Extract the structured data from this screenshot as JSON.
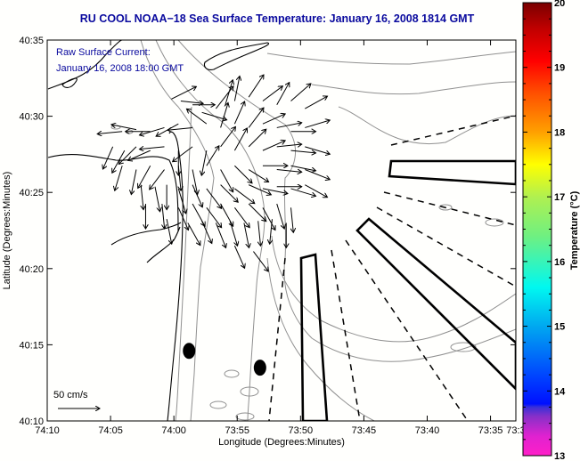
{
  "title": "RU COOL  NOAA−18  Sea Surface Temperature:  January 16, 2008 1814 GMT",
  "inset": {
    "line1": "Raw Surface Current:",
    "line2": "January 16, 2008 18:00 GMT"
  },
  "scale_arrow": {
    "label": "50 cm/s",
    "speed_cm_s": 50
  },
  "colors": {
    "title": "#0a0a9e",
    "background": "#fffffd",
    "coastline": "#000000",
    "isobath": "#909090"
  },
  "chart_data": {
    "type": "map",
    "title": "RU COOL  NOAA−18  Sea Surface Temperature:  January 16, 2008 1814 GMT",
    "xlabel": "Longitude (Degrees:Minutes)",
    "ylabel": "Latitude (Degrees:Minutes)",
    "xlim_minutes_west": [
      250,
      213
    ],
    "ylim_minutes_north": [
      2410,
      2435
    ],
    "x_ticks": [
      "74:10",
      "74:05",
      "74:00",
      "73:55",
      "73:50",
      "73:45",
      "73:40",
      "73:35",
      "73:3"
    ],
    "x_tick_values": [
      250,
      245,
      240,
      235,
      230,
      225,
      220,
      215,
      213
    ],
    "y_ticks": [
      "40:35",
      "40:30",
      "40:25",
      "40:20",
      "40:15",
      "40:10"
    ],
    "y_tick_values": [
      2435,
      2430,
      2425,
      2420,
      2415,
      2410
    ],
    "colorbar": {
      "label": "Temperature (°C)",
      "min": 13,
      "max": 20,
      "ticks": [
        "20",
        "19",
        "18",
        "17",
        "16",
        "15",
        "14",
        "13"
      ],
      "tick_values": [
        20,
        19,
        18,
        17,
        16,
        15,
        14,
        13
      ],
      "stops": [
        {
          "t": 13.0,
          "color": "#ff1fc8"
        },
        {
          "t": 13.3,
          "color": "#e022d0"
        },
        {
          "t": 13.6,
          "color": "#8a30c8"
        },
        {
          "t": 13.75,
          "color": "#3a30d8"
        },
        {
          "t": 13.8,
          "color": "#0010ff"
        },
        {
          "t": 14.2,
          "color": "#0040ff"
        },
        {
          "t": 15.0,
          "color": "#00a8f0"
        },
        {
          "t": 15.6,
          "color": "#00f8f0"
        },
        {
          "t": 16.4,
          "color": "#70f080"
        },
        {
          "t": 17.0,
          "color": "#b0f050"
        },
        {
          "t": 17.5,
          "color": "#ffff00"
        },
        {
          "t": 18.0,
          "color": "#ffa000"
        },
        {
          "t": 18.6,
          "color": "#ff5000"
        },
        {
          "t": 19.1,
          "color": "#ff0000"
        },
        {
          "t": 19.6,
          "color": "#c00000"
        },
        {
          "t": 20.0,
          "color": "#7a0000"
        }
      ]
    },
    "buoys": [
      {
        "lon_min_w": 238.8,
        "lat_min_n": 2414.6
      },
      {
        "lon_min_w": 233.2,
        "lat_min_n": 2413.5
      }
    ],
    "ship_lanes": {
      "solid_boxes": 3,
      "dashed_lines": 8
    },
    "surface_current_vectors": [
      {
        "x": 0.265,
        "y": 0.155,
        "u": 1.0,
        "v": -0.5
      },
      {
        "x": 0.285,
        "y": 0.16,
        "u": 0.9,
        "v": 0.1
      },
      {
        "x": 0.31,
        "y": 0.17,
        "u": 0.9,
        "v": 0.0
      },
      {
        "x": 0.33,
        "y": 0.19,
        "u": 1.0,
        "v": 0.3
      },
      {
        "x": 0.36,
        "y": 0.18,
        "u": 0.7,
        "v": -0.9
      },
      {
        "x": 0.38,
        "y": 0.17,
        "u": 0.3,
        "v": -1.0
      },
      {
        "x": 0.4,
        "y": 0.16,
        "u": 0.2,
        "v": -1.0
      },
      {
        "x": 0.43,
        "y": 0.15,
        "u": 0.6,
        "v": -0.9
      },
      {
        "x": 0.46,
        "y": 0.16,
        "u": 0.8,
        "v": -0.6
      },
      {
        "x": 0.49,
        "y": 0.17,
        "u": 0.5,
        "v": -0.9
      },
      {
        "x": 0.52,
        "y": 0.16,
        "u": 0.8,
        "v": -0.7
      },
      {
        "x": 0.55,
        "y": 0.18,
        "u": 0.9,
        "v": -0.5
      },
      {
        "x": 0.16,
        "y": 0.24,
        "u": -1.0,
        "v": 0.1
      },
      {
        "x": 0.19,
        "y": 0.235,
        "u": -1.0,
        "v": -0.2
      },
      {
        "x": 0.22,
        "y": 0.24,
        "u": -1.0,
        "v": 0.0
      },
      {
        "x": 0.25,
        "y": 0.23,
        "u": -1.0,
        "v": 0.3
      },
      {
        "x": 0.28,
        "y": 0.22,
        "u": -0.9,
        "v": 0.5
      },
      {
        "x": 0.31,
        "y": 0.23,
        "u": -1.0,
        "v": 0.1
      },
      {
        "x": 0.34,
        "y": 0.22,
        "u": -0.8,
        "v": -0.6
      },
      {
        "x": 0.37,
        "y": 0.23,
        "u": 0.3,
        "v": -1.0
      },
      {
        "x": 0.4,
        "y": 0.22,
        "u": 0.4,
        "v": -0.9
      },
      {
        "x": 0.43,
        "y": 0.23,
        "u": 0.6,
        "v": -0.8
      },
      {
        "x": 0.46,
        "y": 0.22,
        "u": 0.9,
        "v": -0.4
      },
      {
        "x": 0.49,
        "y": 0.23,
        "u": 1.0,
        "v": -0.2
      },
      {
        "x": 0.52,
        "y": 0.24,
        "u": 1.0,
        "v": 0.0
      },
      {
        "x": 0.55,
        "y": 0.23,
        "u": 1.0,
        "v": -0.3
      },
      {
        "x": 0.14,
        "y": 0.28,
        "u": -0.4,
        "v": 0.9
      },
      {
        "x": 0.165,
        "y": 0.29,
        "u": -0.5,
        "v": 0.9
      },
      {
        "x": 0.19,
        "y": 0.28,
        "u": -0.7,
        "v": 0.7
      },
      {
        "x": 0.22,
        "y": 0.29,
        "u": -0.9,
        "v": 0.4
      },
      {
        "x": 0.25,
        "y": 0.28,
        "u": -1.0,
        "v": 0.1
      },
      {
        "x": 0.28,
        "y": 0.29,
        "u": 0.0,
        "v": 1.0
      },
      {
        "x": 0.31,
        "y": 0.28,
        "u": -0.8,
        "v": 0.6
      },
      {
        "x": 0.34,
        "y": 0.29,
        "u": -0.2,
        "v": 1.0
      },
      {
        "x": 0.37,
        "y": 0.28,
        "u": 0.6,
        "v": -0.8
      },
      {
        "x": 0.4,
        "y": 0.29,
        "u": 0.5,
        "v": -0.9
      },
      {
        "x": 0.43,
        "y": 0.28,
        "u": 0.7,
        "v": -0.7
      },
      {
        "x": 0.46,
        "y": 0.29,
        "u": 0.9,
        "v": -0.4
      },
      {
        "x": 0.49,
        "y": 0.28,
        "u": 1.0,
        "v": -0.1
      },
      {
        "x": 0.52,
        "y": 0.29,
        "u": 1.0,
        "v": 0.1
      },
      {
        "x": 0.55,
        "y": 0.28,
        "u": 1.0,
        "v": 0.3
      },
      {
        "x": 0.16,
        "y": 0.33,
        "u": -0.3,
        "v": 1.0
      },
      {
        "x": 0.19,
        "y": 0.34,
        "u": -0.2,
        "v": 1.0
      },
      {
        "x": 0.22,
        "y": 0.33,
        "u": -0.5,
        "v": 0.9
      },
      {
        "x": 0.25,
        "y": 0.34,
        "u": -0.6,
        "v": 0.8
      },
      {
        "x": 0.28,
        "y": 0.33,
        "u": 0.1,
        "v": 1.0
      },
      {
        "x": 0.31,
        "y": 0.34,
        "u": 0.2,
        "v": 1.0
      },
      {
        "x": 0.34,
        "y": 0.33,
        "u": 0.5,
        "v": -0.8
      },
      {
        "x": 0.37,
        "y": 0.34,
        "u": 0.5,
        "v": 0.9
      },
      {
        "x": 0.4,
        "y": 0.33,
        "u": 0.7,
        "v": 0.7
      },
      {
        "x": 0.43,
        "y": 0.34,
        "u": 0.8,
        "v": 0.5
      },
      {
        "x": 0.46,
        "y": 0.33,
        "u": 1.0,
        "v": 0.0
      },
      {
        "x": 0.49,
        "y": 0.34,
        "u": 1.0,
        "v": 0.1
      },
      {
        "x": 0.52,
        "y": 0.33,
        "u": 1.0,
        "v": 0.2
      },
      {
        "x": 0.55,
        "y": 0.34,
        "u": 1.0,
        "v": 0.4
      },
      {
        "x": 0.2,
        "y": 0.38,
        "u": 0.1,
        "v": 1.0
      },
      {
        "x": 0.23,
        "y": 0.385,
        "u": 0.2,
        "v": 1.0
      },
      {
        "x": 0.255,
        "y": 0.38,
        "u": 0.0,
        "v": 1.0
      },
      {
        "x": 0.28,
        "y": 0.39,
        "u": 0.3,
        "v": 1.0
      },
      {
        "x": 0.31,
        "y": 0.38,
        "u": 0.4,
        "v": 0.9
      },
      {
        "x": 0.34,
        "y": 0.39,
        "u": 0.6,
        "v": 0.8
      },
      {
        "x": 0.37,
        "y": 0.38,
        "u": 0.7,
        "v": 0.7
      },
      {
        "x": 0.4,
        "y": 0.39,
        "u": 0.8,
        "v": 0.6
      },
      {
        "x": 0.43,
        "y": 0.38,
        "u": 0.9,
        "v": 0.4
      },
      {
        "x": 0.46,
        "y": 0.39,
        "u": 1.0,
        "v": 0.2
      },
      {
        "x": 0.49,
        "y": 0.385,
        "u": 1.0,
        "v": 0.0
      },
      {
        "x": 0.52,
        "y": 0.39,
        "u": 1.0,
        "v": 0.3
      },
      {
        "x": 0.55,
        "y": 0.38,
        "u": 0.9,
        "v": 0.5
      },
      {
        "x": 0.21,
        "y": 0.43,
        "u": 0.0,
        "v": 1.0
      },
      {
        "x": 0.245,
        "y": 0.43,
        "u": 0.1,
        "v": 1.0
      },
      {
        "x": 0.28,
        "y": 0.44,
        "u": 0.4,
        "v": 0.9
      },
      {
        "x": 0.31,
        "y": 0.43,
        "u": 0.5,
        "v": 0.9
      },
      {
        "x": 0.34,
        "y": 0.44,
        "u": 0.6,
        "v": 0.8
      },
      {
        "x": 0.37,
        "y": 0.43,
        "u": 0.5,
        "v": 0.9
      },
      {
        "x": 0.4,
        "y": 0.44,
        "u": 0.6,
        "v": 0.8
      },
      {
        "x": 0.43,
        "y": 0.43,
        "u": 0.7,
        "v": 0.7
      },
      {
        "x": 0.46,
        "y": 0.44,
        "u": 0.5,
        "v": 0.9
      },
      {
        "x": 0.49,
        "y": 0.43,
        "u": 0.3,
        "v": 1.0
      },
      {
        "x": 0.52,
        "y": 0.44,
        "u": 0.1,
        "v": 1.0
      },
      {
        "x": 0.255,
        "y": 0.47,
        "u": 0.2,
        "v": 1.0
      },
      {
        "x": 0.3,
        "y": 0.48,
        "u": 0.5,
        "v": 0.9
      },
      {
        "x": 0.33,
        "y": 0.475,
        "u": 0.4,
        "v": 0.9
      },
      {
        "x": 0.36,
        "y": 0.48,
        "u": 0.4,
        "v": 1.0
      },
      {
        "x": 0.39,
        "y": 0.475,
        "u": 0.3,
        "v": 1.0
      },
      {
        "x": 0.42,
        "y": 0.48,
        "u": 0.2,
        "v": 1.0
      },
      {
        "x": 0.45,
        "y": 0.475,
        "u": 0.1,
        "v": 1.0
      },
      {
        "x": 0.48,
        "y": 0.47,
        "u": -0.1,
        "v": 1.0
      },
      {
        "x": 0.51,
        "y": 0.48,
        "u": 0.0,
        "v": 1.0
      },
      {
        "x": 0.4,
        "y": 0.54,
        "u": 0.4,
        "v": 0.9
      },
      {
        "x": 0.44,
        "y": 0.555,
        "u": 0.6,
        "v": 0.8
      }
    ]
  }
}
